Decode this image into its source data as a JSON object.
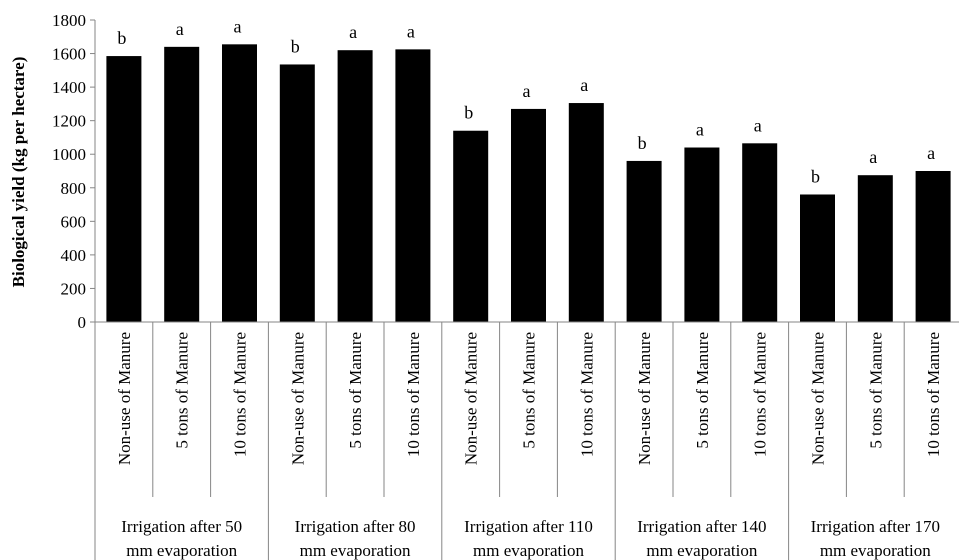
{
  "chart_data": {
    "type": "bar",
    "ylabel": "Biological yield (kg per hectare)",
    "ylim": [
      0,
      1800
    ],
    "ytick_step": 200,
    "yticks": [
      "0",
      "200",
      "400",
      "600",
      "800",
      "1000",
      "1200",
      "1400",
      "1600",
      "1800"
    ],
    "grid": false,
    "bar_color": "#000000",
    "groups": [
      {
        "label_line1": "Irrigation after 50",
        "label_line2": "mm evaporation",
        "bars": [
          {
            "category": "Non-use of Manure",
            "value": 1585,
            "letter": "b"
          },
          {
            "category": "5 tons of Manure",
            "value": 1640,
            "letter": "a"
          },
          {
            "category": "10 tons of Manure",
            "value": 1655,
            "letter": "a"
          }
        ]
      },
      {
        "label_line1": "Irrigation after 80",
        "label_line2": "mm evaporation",
        "bars": [
          {
            "category": "Non-use of Manure",
            "value": 1535,
            "letter": "b"
          },
          {
            "category": "5 tons of Manure",
            "value": 1620,
            "letter": "a"
          },
          {
            "category": "10 tons of Manure",
            "value": 1625,
            "letter": "a"
          }
        ]
      },
      {
        "label_line1": "Irrigation after 110",
        "label_line2": "mm evaporation",
        "bars": [
          {
            "category": "Non-use of Manure",
            "value": 1140,
            "letter": "b"
          },
          {
            "category": "5 tons of Manure",
            "value": 1270,
            "letter": "a"
          },
          {
            "category": "10 tons of Manure",
            "value": 1305,
            "letter": "a"
          }
        ]
      },
      {
        "label_line1": "Irrigation after 140",
        "label_line2": "mm evaporation",
        "bars": [
          {
            "category": "Non-use of Manure",
            "value": 960,
            "letter": "b"
          },
          {
            "category": "5 tons of Manure",
            "value": 1040,
            "letter": "a"
          },
          {
            "category": "10 tons of Manure",
            "value": 1065,
            "letter": "a"
          }
        ]
      },
      {
        "label_line1": "Irrigation after 170",
        "label_line2": "mm evaporation",
        "bars": [
          {
            "category": "Non-use of Manure",
            "value": 760,
            "letter": "b"
          },
          {
            "category": "5 tons of Manure",
            "value": 875,
            "letter": "a"
          },
          {
            "category": "10 tons of Manure",
            "value": 900,
            "letter": "a"
          }
        ]
      }
    ]
  }
}
